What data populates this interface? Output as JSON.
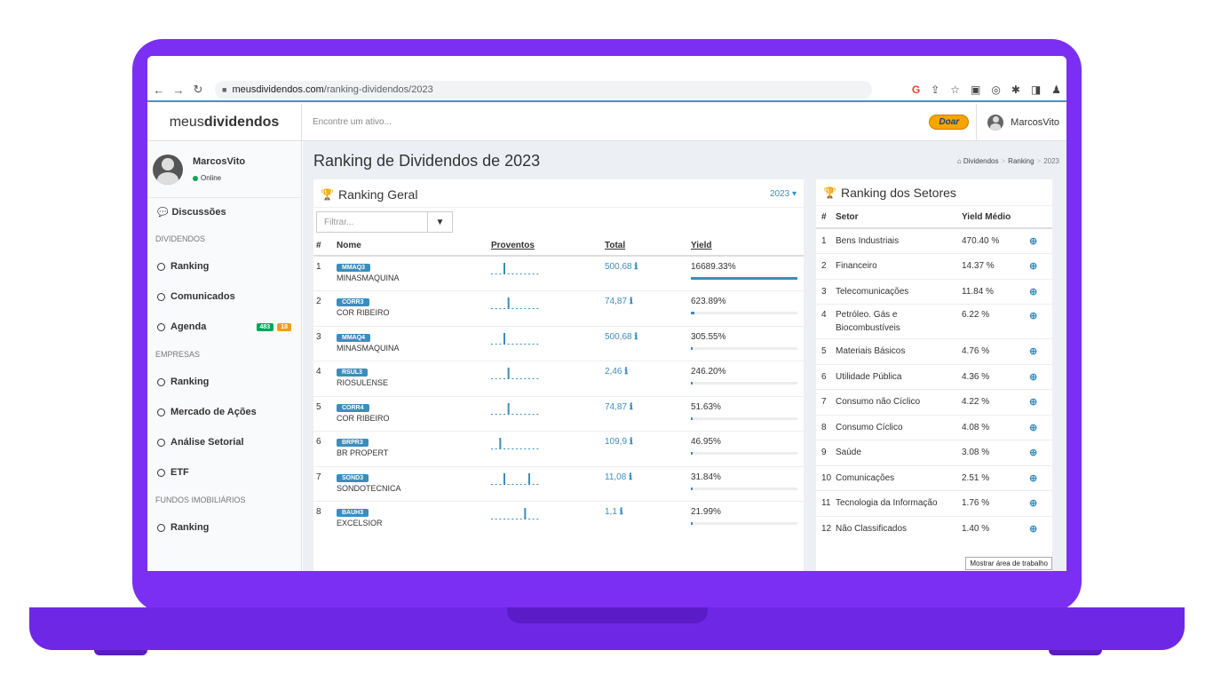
{
  "browser": {
    "url_domain": "meusdividendos.com",
    "url_path": "/ranking-dividendos/2023"
  },
  "header": {
    "logo_light": "meus",
    "logo_bold": "dividendos",
    "search_placeholder": "Encontre um ativo...",
    "donate_label": "Doar",
    "username": "MarcosVito"
  },
  "sidebar": {
    "user": {
      "name": "MarcosVito",
      "status": "Online"
    },
    "discussions": "Discussões",
    "sections": [
      {
        "title": "DIVIDENDOS"
      },
      {
        "title": "EMPRESAS"
      },
      {
        "title": "FUNDOS IMOBILIÁRIOS"
      }
    ],
    "dividendos_items": [
      "Ranking",
      "Comunicados",
      "Agenda"
    ],
    "agenda_badges": [
      "483",
      "18"
    ],
    "empresas_items": [
      "Ranking",
      "Mercado de Ações",
      "Análise Setorial",
      "ETF"
    ],
    "fundos_items": [
      "Ranking"
    ]
  },
  "page": {
    "title": "Ranking de Dividendos de 2023",
    "breadcrumb": [
      "Dividendos",
      "Ranking",
      "2023"
    ]
  },
  "ranking_geral": {
    "title": "Ranking Geral",
    "year": "2023",
    "filter_placeholder": "Filtrar...",
    "columns": [
      "#",
      "Nome",
      "Proventos",
      "Total",
      "Yield"
    ],
    "rows": [
      {
        "rank": "1",
        "ticker": "MMAQ3",
        "company": "MINASMAQUINA",
        "total": "500,68",
        "yield": "16689.33%",
        "yield_fraction": 1.0,
        "spikes": [
          {
            "pos": 3,
            "h": 1.0
          }
        ]
      },
      {
        "rank": "2",
        "ticker": "CORR3",
        "company": "COR RIBEIRO",
        "total": "74,87",
        "yield": "623.89%",
        "yield_fraction": 0.037,
        "spikes": [
          {
            "pos": 4,
            "h": 1.0
          }
        ]
      },
      {
        "rank": "3",
        "ticker": "MMAQ4",
        "company": "MINASMAQUINA",
        "total": "500,68",
        "yield": "305.55%",
        "yield_fraction": 0.018,
        "spikes": [
          {
            "pos": 3,
            "h": 1.0
          }
        ]
      },
      {
        "rank": "4",
        "ticker": "RSUL3",
        "company": "RIOSULENSE",
        "total": "2,46",
        "yield": "246.20%",
        "yield_fraction": 0.015,
        "spikes": [
          {
            "pos": 4,
            "h": 1.0
          }
        ]
      },
      {
        "rank": "5",
        "ticker": "CORR4",
        "company": "COR RIBEIRO",
        "total": "74,87",
        "yield": "51.63%",
        "yield_fraction": 0.005,
        "spikes": [
          {
            "pos": 4,
            "h": 1.0
          }
        ]
      },
      {
        "rank": "6",
        "ticker": "BRPR3",
        "company": "BR PROPERT",
        "total": "109,9",
        "yield": "46.95%",
        "yield_fraction": 0.004,
        "spikes": [
          {
            "pos": 2,
            "h": 1.0
          }
        ]
      },
      {
        "rank": "7",
        "ticker": "SOND3",
        "company": "SONDOTECNICA",
        "total": "11,08",
        "yield": "31.84%",
        "yield_fraction": 0.003,
        "spikes": [
          {
            "pos": 3,
            "h": 1.0
          },
          {
            "pos": 9,
            "h": 1.0
          }
        ]
      },
      {
        "rank": "8",
        "ticker": "BAUH3",
        "company": "EXCELSIOR",
        "total": "1,1",
        "yield": "21.99%",
        "yield_fraction": 0.002,
        "spikes": [
          {
            "pos": 8,
            "h": 1.0
          }
        ]
      }
    ]
  },
  "ranking_setores": {
    "title": "Ranking dos Setores",
    "columns": [
      "#",
      "Setor",
      "Yield Médio"
    ],
    "rows": [
      {
        "rank": "1",
        "sector": "Bens Industriais",
        "yield": "470.40 %"
      },
      {
        "rank": "2",
        "sector": "Financeiro",
        "yield": "14.37 %"
      },
      {
        "rank": "3",
        "sector": "Telecomunicações",
        "yield": "11.84 %"
      },
      {
        "rank": "4",
        "sector": "Petróleo. Gás e Biocombustíveis",
        "yield": "6.22 %"
      },
      {
        "rank": "5",
        "sector": "Materiais Básicos",
        "yield": "4.76 %"
      },
      {
        "rank": "6",
        "sector": "Utilidade Pública",
        "yield": "4.36 %"
      },
      {
        "rank": "7",
        "sector": "Consumo não Cíclico",
        "yield": "4.22 %"
      },
      {
        "rank": "8",
        "sector": "Consumo Cíclico",
        "yield": "4.08 %"
      },
      {
        "rank": "9",
        "sector": "Saúde",
        "yield": "3.08 %"
      },
      {
        "rank": "10",
        "sector": "Comunicações",
        "yield": "2.51 %"
      },
      {
        "rank": "11",
        "sector": "Tecnologia da Informação",
        "yield": "1.76 %"
      },
      {
        "rank": "12",
        "sector": "Não Classificados",
        "yield": "1.40 %"
      }
    ],
    "tooltip": "Mostrar área de trabalho"
  },
  "colors": {
    "accent": "#3c8dbc",
    "frame": "#7b2ff2",
    "badge_green": "#00a65a",
    "badge_orange": "#f39c12",
    "donate": "#f8a400"
  },
  "icons": [
    "back-arrow-icon",
    "forward-arrow-icon",
    "reload-icon",
    "lock-icon",
    "google-icon",
    "share-icon",
    "star-icon",
    "puzzle-icon",
    "trophy-icon",
    "filter-icon",
    "info-icon",
    "zoom-icon"
  ]
}
